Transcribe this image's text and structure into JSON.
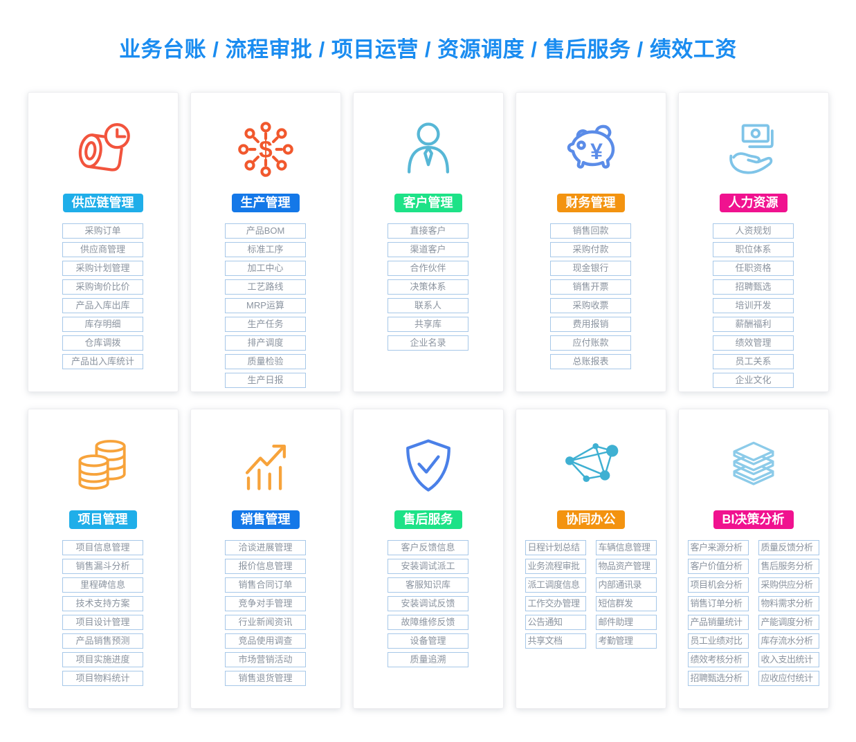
{
  "title": "业务台账 / 流程审批 / 项目运营 / 资源调度 / 售后服务 / 绩效工资",
  "colors": {
    "title": "#1a8cf0",
    "item_border": "#a6c7e8",
    "item_text": "#8a939f"
  },
  "cards": [
    {
      "id": "supply-chain",
      "icon": "roll-clock-icon",
      "icon_color": "#f2543d",
      "header": "供应链管理",
      "header_color": "#1faee9",
      "columns": 1,
      "items": [
        "采购订单",
        "供应商管理",
        "采购计划管理",
        "采购询价比价",
        "产品入库出库",
        "库存明细",
        "仓库调拨",
        "产品出入库统计"
      ]
    },
    {
      "id": "production",
      "icon": "dollar-network-icon",
      "icon_color": "#f1582d",
      "header": "生产管理",
      "header_color": "#1478e8",
      "columns": 1,
      "items": [
        "产品BOM",
        "标准工序",
        "加工中心",
        "工艺路线",
        "MRP运算",
        "生产任务",
        "排产调度",
        "质量检验",
        "生产日报"
      ]
    },
    {
      "id": "customer",
      "icon": "person-icon",
      "icon_color": "#57b7d6",
      "header": "客户管理",
      "header_color": "#1de287",
      "columns": 1,
      "items": [
        "直接客户",
        "渠道客户",
        "合作伙伴",
        "决策体系",
        "联系人",
        "共享库",
        "企业名录"
      ]
    },
    {
      "id": "finance",
      "icon": "piggy-bank-icon",
      "icon_color": "#5b8ce8",
      "header": "财务管理",
      "header_color": "#f39310",
      "columns": 1,
      "items": [
        "销售回款",
        "采购付款",
        "现金银行",
        "销售开票",
        "采购收票",
        "费用报销",
        "应付账款",
        "总账报表"
      ]
    },
    {
      "id": "hr",
      "icon": "hand-money-icon",
      "icon_color": "#7fc4e8",
      "header": "人力资源",
      "header_color": "#f0128f",
      "columns": 1,
      "items": [
        "人资规划",
        "职位体系",
        "任职资格",
        "招聘甄选",
        "培训开发",
        "薪酬福利",
        "绩效管理",
        "员工关系",
        "企业文化"
      ]
    },
    {
      "id": "project",
      "icon": "coin-stacks-icon",
      "icon_color": "#f7a33b",
      "header": "项目管理",
      "header_color": "#1faee9",
      "columns": 1,
      "items": [
        "项目信息管理",
        "销售漏斗分析",
        "里程碑信息",
        "技术支持方案",
        "项目设计管理",
        "产品销售预测",
        "项目实施进度",
        "项目物料统计"
      ]
    },
    {
      "id": "sales",
      "icon": "growth-chart-icon",
      "icon_color": "#f7a33b",
      "header": "销售管理",
      "header_color": "#1478e8",
      "columns": 1,
      "items": [
        "洽谈进展管理",
        "报价信息管理",
        "销售合同订单",
        "竞争对手管理",
        "行业新闻资讯",
        "竞品使用调查",
        "市场营销活动",
        "销售退货管理"
      ]
    },
    {
      "id": "after-sales",
      "icon": "shield-check-icon",
      "icon_color": "#4a80e8",
      "header": "售后服务",
      "header_color": "#1de287",
      "columns": 1,
      "items": [
        "客户反馈信息",
        "安装调试派工",
        "客服知识库",
        "安装调试反馈",
        "故障维修反馈",
        "设备管理",
        "质量追溯"
      ]
    },
    {
      "id": "collaboration",
      "icon": "network-nodes-icon",
      "icon_color": "#3fb0d2",
      "header": "协同办公",
      "header_color": "#f39310",
      "columns": 2,
      "items": [
        "日程计划总结",
        "业务流程审批",
        "派工调度信息",
        "工作交办管理",
        "公告通知",
        "共享文档",
        "车辆信息管理",
        "物品资产管理",
        "内部通讯录",
        "短信群发",
        "邮件助理",
        "考勤管理"
      ]
    },
    {
      "id": "bi",
      "icon": "stacked-layers-icon",
      "icon_color": "#8ccbe9",
      "header": "BI决策分析",
      "header_color": "#f0128f",
      "columns": 2,
      "items": [
        "客户来源分析",
        "客户价值分析",
        "项目机会分析",
        "销售订单分析",
        "产品销量统计",
        "员工业绩对比",
        "绩效考核分析",
        "招聘甄选分析",
        "质量反馈分析",
        "售后服务分析",
        "采购供应分析",
        "物料需求分析",
        "产能调度分析",
        "库存流水分析",
        "收入支出统计",
        "应收应付统计"
      ]
    }
  ]
}
